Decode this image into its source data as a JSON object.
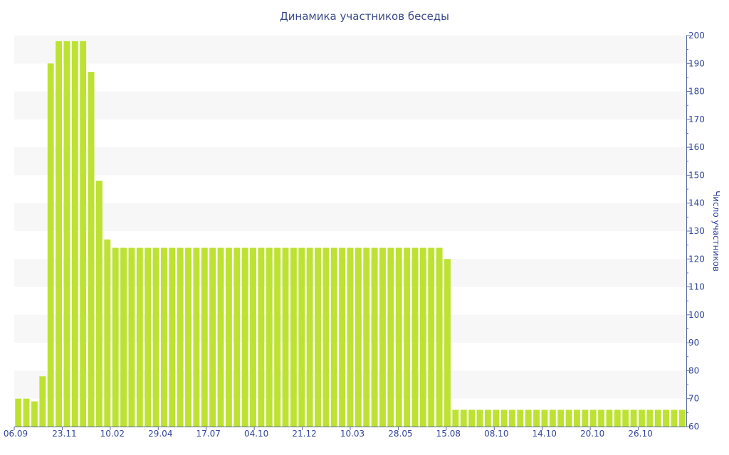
{
  "chart_data": {
    "type": "bar",
    "title": "Динамика участников беседы",
    "ylabel": "Число участников",
    "xlabel": "",
    "ylim": [
      60,
      200
    ],
    "y_ticks": [
      60,
      70,
      80,
      90,
      100,
      110,
      120,
      130,
      140,
      150,
      160,
      170,
      180,
      190,
      200
    ],
    "y_axis_side": "right",
    "x_tick_labels": [
      "06.09",
      "23.11",
      "10.02",
      "29.04",
      "17.07",
      "04.10",
      "21.12",
      "10.03",
      "28.05",
      "15.08",
      "08.10",
      "14.10",
      "20.10",
      "26.10"
    ],
    "bar_color": "#bde232",
    "band_color": "#f7f7f7",
    "values": [
      70,
      70,
      69,
      78,
      190,
      198,
      198,
      198,
      198,
      187,
      148,
      127,
      124,
      124,
      124,
      124,
      124,
      124,
      124,
      124,
      124,
      124,
      124,
      124,
      124,
      124,
      124,
      124,
      124,
      124,
      124,
      124,
      124,
      124,
      124,
      124,
      124,
      124,
      124,
      124,
      124,
      124,
      124,
      124,
      124,
      124,
      124,
      124,
      124,
      124,
      124,
      124,
      124,
      120,
      66,
      66,
      66,
      66,
      66,
      66,
      66,
      66,
      66,
      66,
      66,
      66,
      66,
      66,
      66,
      66,
      66,
      66,
      66,
      66,
      66,
      66,
      66,
      66,
      66,
      66,
      66,
      66,
      66
    ]
  }
}
